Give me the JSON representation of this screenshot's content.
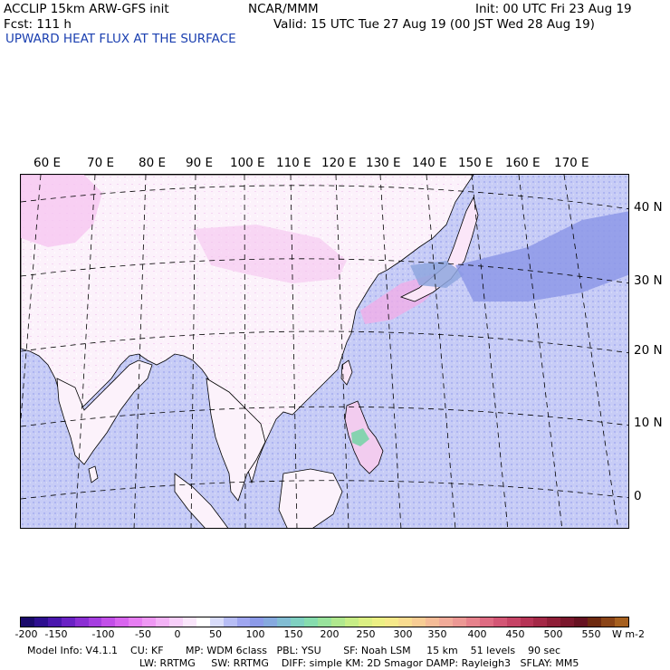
{
  "header": {
    "model": "ACCLIP 15km ARW-GFS init",
    "center": "NCAR/MMM",
    "init": "Init: 00 UTC Fri 23 Aug 19",
    "fcst": "Fcst:  111 h",
    "valid": "Valid: 15 UTC Tue 27 Aug 19 (00 JST Wed 28 Aug 19)",
    "field": "UPWARD HEAT FLUX AT THE SURFACE"
  },
  "map": {
    "lon_labels": [
      "60 E",
      "70 E",
      "80 E",
      "90 E",
      "100 E",
      "110 E",
      "120 E",
      "130 E",
      "140 E",
      "150 E",
      "160 E",
      "170 E"
    ],
    "lat_labels": [
      "40 N",
      "30 N",
      "20 N",
      "10 N",
      "0"
    ]
  },
  "colorbar": {
    "tick_labels": [
      "-200",
      "-150",
      "-100",
      "-50",
      "0",
      "50",
      "100",
      "150",
      "200",
      "250",
      "300",
      "350",
      "400",
      "450",
      "500",
      "550"
    ],
    "unit": "W m-2",
    "colors": [
      "#1a0a6b",
      "#2d0f8f",
      "#4a17ad",
      "#6a22c4",
      "#8b2fd3",
      "#a63ee0",
      "#c24fe8",
      "#d865ee",
      "#e77ef2",
      "#ef98f4",
      "#f3b3f6",
      "#f7cff9",
      "#fae6fb",
      "#ffffff",
      "#d9dcfa",
      "#b7bdf5",
      "#9fa6f0",
      "#8c9ae8",
      "#86a9df",
      "#82bdd3",
      "#7fd0c1",
      "#86dcae",
      "#99e39c",
      "#b0e88e",
      "#c7ed86",
      "#dcf083",
      "#ecf084",
      "#f6e98a",
      "#f9dc90",
      "#f8cd94",
      "#f5bc97",
      "#f1ab99",
      "#ec9894",
      "#e6828c",
      "#de6b82",
      "#d35675",
      "#c64466",
      "#b63456",
      "#a42947",
      "#8f1f38",
      "#7a172c",
      "#661221",
      "#6e2a10",
      "#8a4417",
      "#a6601f"
    ]
  },
  "model_info": {
    "line1": "Model Info: V4.1.1    CU: KF       MP: WDM 6class   PBL: YSU       SF: Noah LSM     15 km    51 levels    90 sec",
    "line2": "LW: RRTMG     SW: RRTMG    DIFF: simple KM: 2D Smagor DAMP: Rayleigh3   SFLAY: MM5"
  }
}
